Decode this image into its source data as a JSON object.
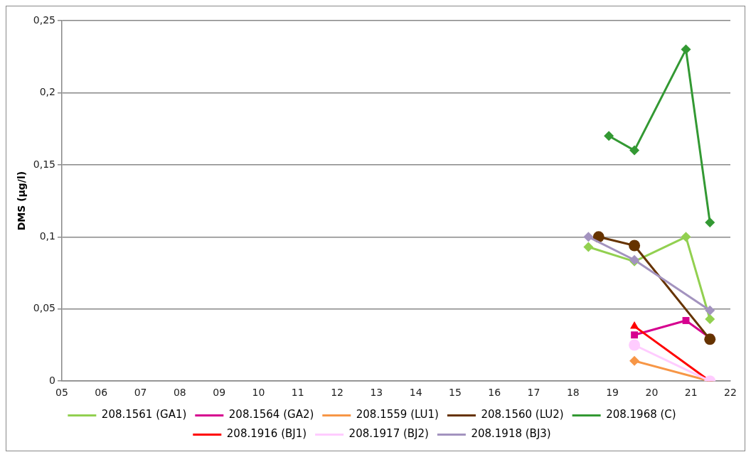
{
  "chart_data": {
    "type": "line",
    "ylabel": "DMS (µg/l)",
    "xlim": [
      5,
      22
    ],
    "xticks": [
      {
        "value": 5,
        "label": "05"
      },
      {
        "value": 6,
        "label": "06"
      },
      {
        "value": 7,
        "label": "07"
      },
      {
        "value": 8,
        "label": "08"
      },
      {
        "value": 9,
        "label": "09"
      },
      10,
      11,
      12,
      13,
      14,
      15,
      16,
      17,
      18,
      19,
      20,
      21,
      22
    ],
    "ylim": [
      0,
      0.25
    ],
    "yticks": [
      {
        "value": 0,
        "label": "0"
      },
      {
        "value": 0.05,
        "label": "0,05"
      },
      {
        "value": 0.1,
        "label": "0,1"
      },
      {
        "value": 0.15,
        "label": "0,15"
      },
      {
        "value": 0.2,
        "label": "0,2"
      },
      {
        "value": 0.25,
        "label": "0,25"
      }
    ],
    "grid": "y",
    "legend": "bottom",
    "series": [
      {
        "name": "208.1561 (GA1)",
        "color": "#92d050",
        "marker": "diamond",
        "x": [
          18.39,
          19.56,
          20.87,
          21.48
        ],
        "values": [
          0.093,
          0.083,
          0.1,
          0.043
        ]
      },
      {
        "name": "208.1564 (GA2)",
        "color": "#d6008f",
        "marker": "square",
        "x": [
          19.56,
          20.87,
          21.48
        ],
        "values": [
          0.032,
          0.042,
          0.03
        ]
      },
      {
        "name": "208.1559 (LU1)",
        "color": "#f79646",
        "marker": "diamond",
        "x": [
          19.56,
          21.48
        ],
        "values": [
          0.014,
          0
        ]
      },
      {
        "name": "208.1560 (LU2)",
        "color": "#663300",
        "marker": "circle",
        "x": [
          18.65,
          19.56,
          21.48
        ],
        "values": [
          0.1,
          0.094,
          0.029
        ]
      },
      {
        "name": "208.1968 (C)",
        "color": "#339933",
        "marker": "diamond",
        "x": [
          18.91,
          19.56,
          20.87,
          21.48
        ],
        "values": [
          0.17,
          0.16,
          0.23,
          0.11
        ]
      },
      {
        "name": "208.1916 (BJ1)",
        "color": "#ff0000",
        "marker": "triangle",
        "x": [
          19.56,
          21.48
        ],
        "values": [
          0.038,
          0
        ]
      },
      {
        "name": "208.1917 (BJ2)",
        "color": "#ffccff",
        "marker": "circle",
        "x": [
          19.56,
          21.48
        ],
        "values": [
          0.025,
          0
        ]
      },
      {
        "name": "208.1918 (BJ3)",
        "color": "#a393bf",
        "marker": "diamond",
        "x": [
          18.39,
          19.56,
          21.48
        ],
        "values": [
          0.1,
          0.084,
          0.049
        ]
      }
    ]
  }
}
